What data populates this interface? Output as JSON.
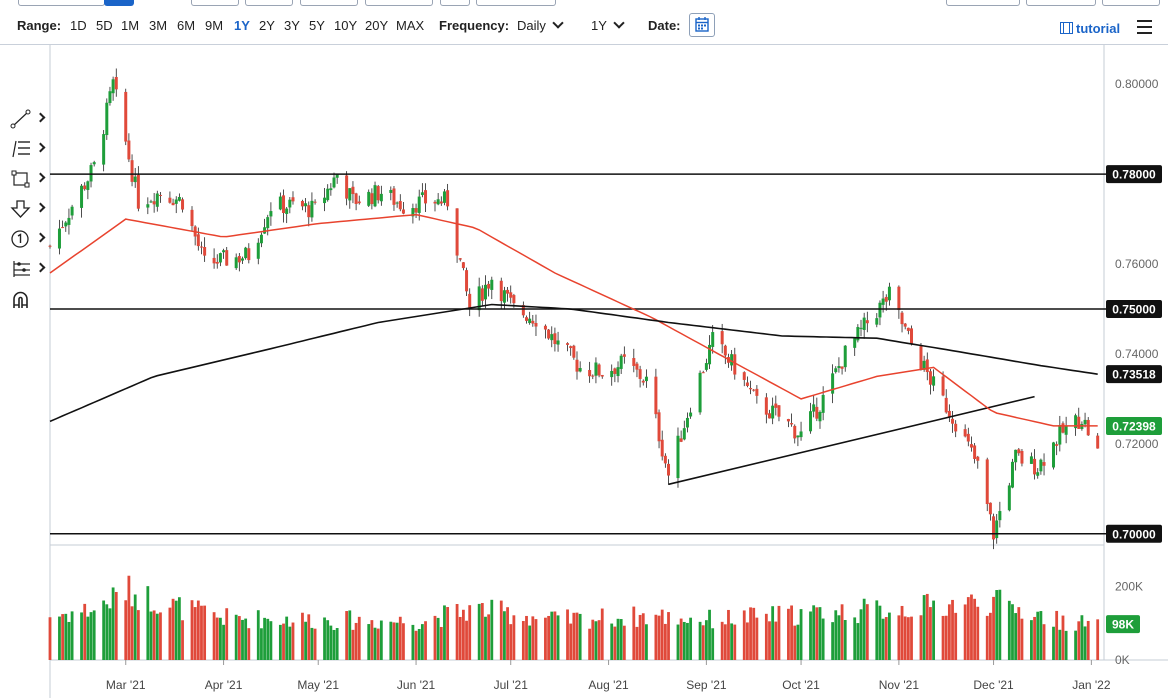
{
  "toolbar": {
    "range_label": "Range:",
    "ranges": [
      "1D",
      "5D",
      "1M",
      "3M",
      "6M",
      "9M",
      "1Y",
      "2Y",
      "3Y",
      "5Y",
      "10Y",
      "20Y",
      "MAX"
    ],
    "active_range": "1Y",
    "frequency_label": "Frequency:",
    "frequency_value": "Daily",
    "period_value": "1Y",
    "date_label": "Date:",
    "tutorial_label": "tutorial"
  },
  "colors": {
    "bull": "#1e9e3a",
    "bear": "#e0493a",
    "ma_short": "#e8432e",
    "ma_long": "#111111",
    "active": "#1a64c8",
    "price_tag": "#1e9e3a"
  },
  "icons": [
    "line-tool-icon",
    "fib-tool-icon",
    "shape-tool-icon",
    "arrow-tool-icon",
    "annotation-tool-icon",
    "pattern-tool-icon",
    "magnet-icon"
  ],
  "chart_data": {
    "type": "candlestick",
    "x_ticks": [
      "Mar '21",
      "Apr '21",
      "May '21",
      "Jun '21",
      "Jul '21",
      "Aug '21",
      "Sep '21",
      "Oct '21",
      "Nov '21",
      "Dec '21",
      "Jan '22"
    ],
    "y_ticks": [
      "0.80000",
      "0.76000",
      "0.74000",
      "0.72000"
    ],
    "ylim": [
      0.6975,
      0.8065
    ],
    "volume_ticks": [
      "200K",
      "0K"
    ],
    "volume_ylim": [
      0,
      300
    ],
    "last_price_label": "0.72398",
    "last_volume_label": "98K",
    "horizontal_lines": [
      {
        "label": "0.78000",
        "value": 0.78
      },
      {
        "label": "0.75000",
        "value": 0.75
      },
      {
        "label": "0.70000",
        "value": 0.7
      }
    ],
    "ma_label": "0.73518",
    "trendline": {
      "from": [
        "2021-08-20",
        0.711
      ],
      "to": [
        "2021-12-14",
        0.7305
      ]
    },
    "candle_anchors": [
      [
        "2021-02-05",
        0.764
      ],
      [
        "2021-02-12",
        0.773
      ],
      [
        "2021-02-19",
        0.7815
      ],
      [
        "2021-02-25",
        0.8
      ],
      [
        "2021-03-05",
        0.774
      ],
      [
        "2021-03-12",
        0.776
      ],
      [
        "2021-03-19",
        0.774
      ],
      [
        "2021-03-26",
        0.76
      ],
      [
        "2021-04-02",
        0.761
      ],
      [
        "2021-04-09",
        0.762
      ],
      [
        "2021-04-16",
        0.773
      ],
      [
        "2021-04-23",
        0.773
      ],
      [
        "2021-04-30",
        0.772
      ],
      [
        "2021-05-07",
        0.78
      ],
      [
        "2021-05-12",
        0.774
      ],
      [
        "2021-05-21",
        0.776
      ],
      [
        "2021-05-28",
        0.773
      ],
      [
        "2021-06-04",
        0.774
      ],
      [
        "2021-06-11",
        0.774
      ],
      [
        "2021-06-18",
        0.75
      ],
      [
        "2021-06-25",
        0.757
      ],
      [
        "2021-07-02",
        0.75
      ],
      [
        "2021-07-09",
        0.748
      ],
      [
        "2021-07-16",
        0.742
      ],
      [
        "2021-07-23",
        0.737
      ],
      [
        "2021-07-30",
        0.736
      ],
      [
        "2021-08-06",
        0.738
      ],
      [
        "2021-08-13",
        0.734
      ],
      [
        "2021-08-20",
        0.713
      ],
      [
        "2021-08-27",
        0.729
      ],
      [
        "2021-09-03",
        0.743
      ],
      [
        "2021-09-10",
        0.737
      ],
      [
        "2021-09-17",
        0.729
      ],
      [
        "2021-09-24",
        0.726
      ],
      [
        "2021-10-01",
        0.722
      ],
      [
        "2021-10-08",
        0.73
      ],
      [
        "2021-10-15",
        0.74
      ],
      [
        "2021-10-22",
        0.747
      ],
      [
        "2021-10-29",
        0.753
      ],
      [
        "2021-11-05",
        0.742
      ],
      [
        "2021-11-12",
        0.733
      ],
      [
        "2021-11-19",
        0.725
      ],
      [
        "2021-11-26",
        0.715
      ],
      [
        "2021-12-01",
        0.7
      ],
      [
        "2021-12-08",
        0.717
      ],
      [
        "2021-12-15",
        0.715
      ],
      [
        "2021-12-22",
        0.722
      ],
      [
        "2021-12-29",
        0.726
      ],
      [
        "2022-01-03",
        0.718
      ]
    ],
    "ma_short_anchors": [
      [
        "2021-02-05",
        0.758
      ],
      [
        "2021-03-01",
        0.77
      ],
      [
        "2021-04-01",
        0.766
      ],
      [
        "2021-05-01",
        0.769
      ],
      [
        "2021-06-01",
        0.771
      ],
      [
        "2021-06-20",
        0.768
      ],
      [
        "2021-07-15",
        0.758
      ],
      [
        "2021-08-15",
        0.748
      ],
      [
        "2021-09-10",
        0.738
      ],
      [
        "2021-10-01",
        0.73
      ],
      [
        "2021-10-25",
        0.735
      ],
      [
        "2021-11-12",
        0.737
      ],
      [
        "2021-12-01",
        0.727
      ],
      [
        "2021-12-20",
        0.724
      ],
      [
        "2022-01-03",
        0.724
      ]
    ],
    "ma_long_anchors": [
      [
        "2021-02-05",
        0.725
      ],
      [
        "2021-03-10",
        0.735
      ],
      [
        "2021-04-15",
        0.741
      ],
      [
        "2021-05-20",
        0.747
      ],
      [
        "2021-06-25",
        0.751
      ],
      [
        "2021-07-20",
        0.75
      ],
      [
        "2021-08-20",
        0.747
      ],
      [
        "2021-09-25",
        0.744
      ],
      [
        "2021-10-25",
        0.7435
      ],
      [
        "2021-11-20",
        0.7405
      ],
      [
        "2021-12-15",
        0.7375
      ],
      [
        "2022-01-03",
        0.7355
      ]
    ],
    "volume_anchors": [
      [
        "2021-02-05",
        120
      ],
      [
        "2021-02-20",
        140
      ],
      [
        "2021-03-01",
        190
      ],
      [
        "2021-03-15",
        150
      ],
      [
        "2021-04-01",
        115
      ],
      [
        "2021-05-01",
        110
      ],
      [
        "2021-06-01",
        105
      ],
      [
        "2021-06-20",
        140
      ],
      [
        "2021-07-15",
        110
      ],
      [
        "2021-08-15",
        120
      ],
      [
        "2021-09-01",
        110
      ],
      [
        "2021-10-01",
        125
      ],
      [
        "2021-11-01",
        140
      ],
      [
        "2021-12-01",
        160
      ],
      [
        "2021-12-20",
        110
      ],
      [
        "2022-01-03",
        95
      ]
    ]
  }
}
